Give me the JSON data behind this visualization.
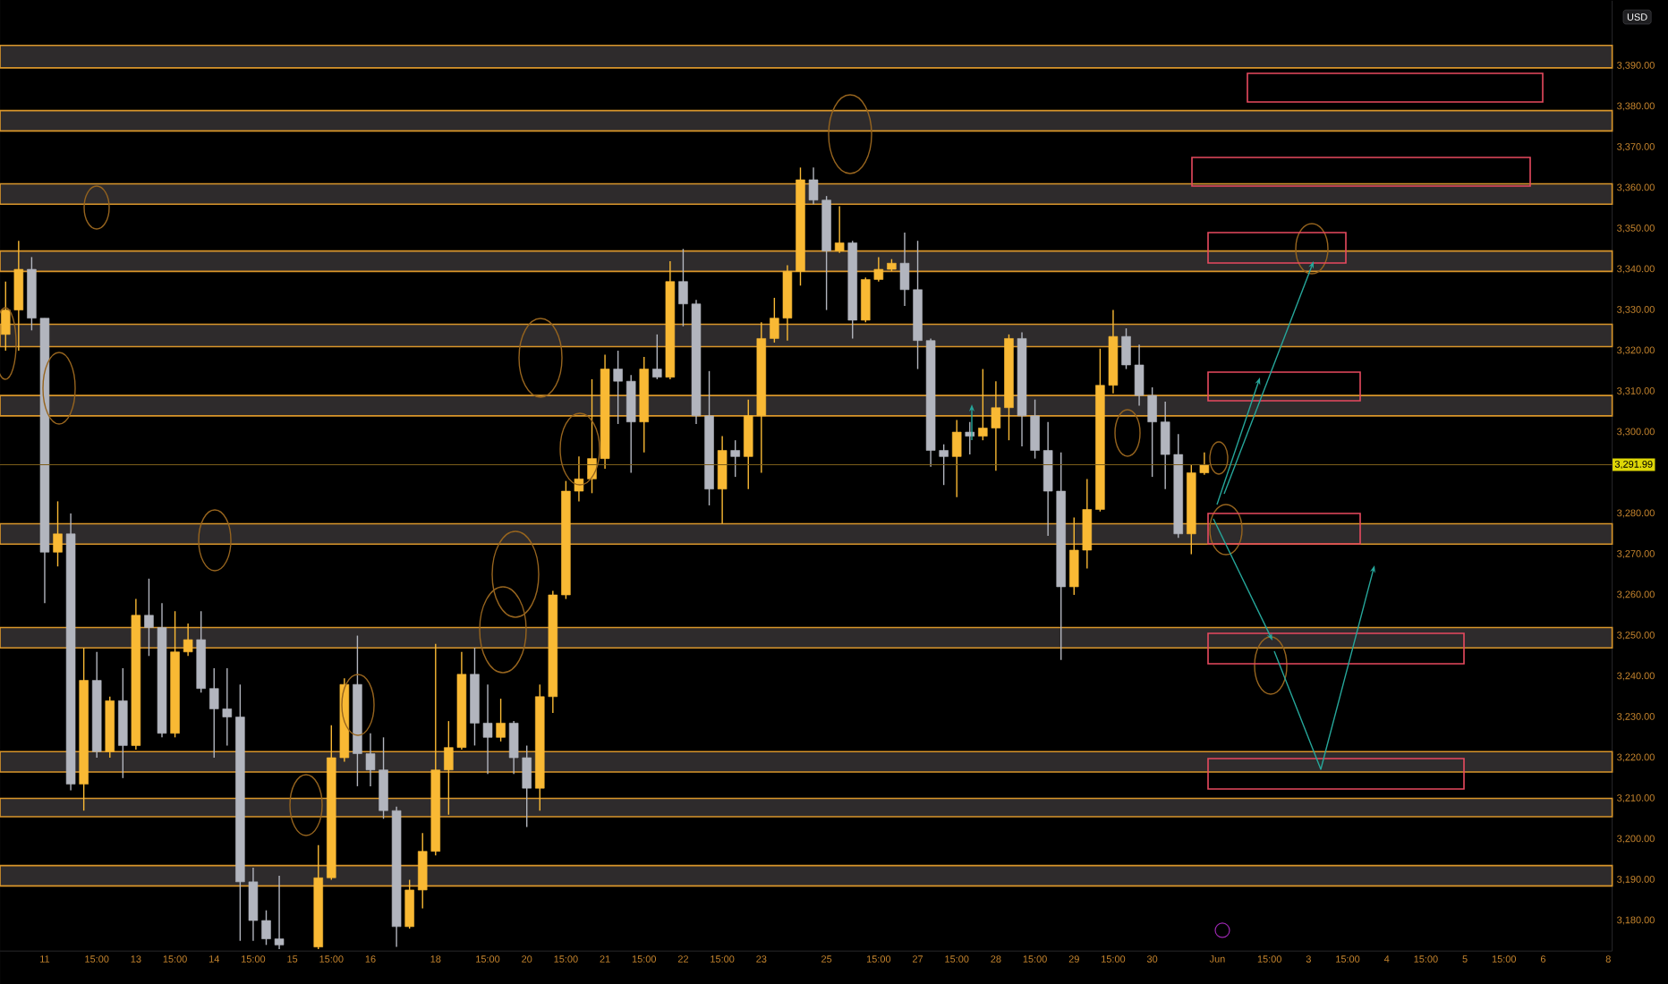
{
  "chart_data": {
    "type": "candlestick",
    "ylabel": "USD",
    "categories": [
      null,
      null,
      null,
      "11",
      null,
      null,
      null,
      "15:00",
      null,
      null,
      "13",
      null,
      null,
      "15:00",
      null,
      null,
      "14",
      null,
      null,
      "15:00",
      null,
      null,
      "15",
      null,
      null,
      "15:00",
      null,
      null,
      "16",
      null,
      null,
      null,
      null,
      "18",
      null,
      null,
      null,
      "15:00",
      null,
      null,
      "20",
      null,
      null,
      "15:00",
      null,
      null,
      "21",
      null,
      null,
      "15:00",
      null,
      null,
      "22",
      null,
      null,
      "15:00",
      null,
      null,
      "23",
      null,
      null,
      null,
      null,
      "25",
      null,
      null,
      null,
      "15:00",
      null,
      null,
      "27",
      null,
      null,
      "15:00",
      null,
      null,
      "28",
      null,
      null,
      "15:00",
      null,
      null,
      "29",
      null,
      null,
      "15:00",
      null,
      null,
      "30",
      null,
      null,
      null,
      null,
      "Jun",
      null,
      null,
      null,
      "15:00",
      null,
      null,
      "3",
      null,
      null,
      "15:00",
      null,
      null,
      "4",
      null,
      null,
      "15:00",
      null,
      null,
      "5",
      null,
      null,
      "15:00",
      null,
      null,
      "6",
      null,
      null,
      null,
      null,
      "8"
    ],
    "ohlc": [
      [
        3324,
        3337,
        3320,
        3330
      ],
      [
        3330,
        3347,
        3320,
        3340
      ],
      [
        3340,
        3343,
        3325,
        3328
      ],
      [
        3328,
        3328,
        3258,
        3270.5
      ],
      [
        3270.5,
        3283,
        3267,
        3275
      ],
      [
        3275,
        3280,
        3212,
        3213.5
      ],
      [
        3213.5,
        3247,
        3207,
        3239
      ],
      [
        3239,
        3246,
        3220,
        3221.5
      ],
      [
        3221.5,
        3235,
        3220,
        3234
      ],
      [
        3234,
        3242,
        3215,
        3223
      ],
      [
        3223,
        3259,
        3222,
        3255
      ],
      [
        3255,
        3264,
        3245,
        3252
      ],
      [
        3252,
        3258,
        3225,
        3226
      ],
      [
        3226,
        3256,
        3225,
        3246
      ],
      [
        3246,
        3253,
        3245,
        3249
      ],
      [
        3249,
        3256,
        3236,
        3237
      ],
      [
        3237,
        3242,
        3220,
        3232
      ],
      [
        3232,
        3242,
        3223,
        3230
      ],
      [
        3230,
        3238,
        3175,
        3189.5
      ],
      [
        3189.5,
        3193,
        3175,
        3180
      ],
      [
        3180,
        3182.5,
        3174,
        3175.5
      ],
      [
        3175.5,
        3191,
        3173,
        3174
      ],
      null,
      null,
      [
        3173.5,
        3198.5,
        3173,
        3190.5
      ],
      [
        3190.5,
        3228,
        3190,
        3220
      ],
      [
        3220,
        3239.5,
        3219,
        3238
      ],
      [
        3238,
        3250,
        3213,
        3221
      ],
      [
        3221,
        3226,
        3213,
        3217
      ],
      [
        3217,
        3225,
        3205,
        3207
      ],
      [
        3207,
        3208,
        3173.5,
        3178.5
      ],
      [
        3178.5,
        3190,
        3178,
        3187.5
      ],
      [
        3187.5,
        3201.5,
        3183,
        3197
      ],
      [
        3197,
        3248,
        3196,
        3217
      ],
      [
        3217,
        3229,
        3206,
        3222.5
      ],
      [
        3222.5,
        3246,
        3222,
        3240.5
      ],
      [
        3240.5,
        3247,
        3223,
        3228.5
      ],
      [
        3228.5,
        3238,
        3216,
        3225
      ],
      [
        3225,
        3234.5,
        3224,
        3228.5
      ],
      [
        3228.5,
        3229,
        3216,
        3220
      ],
      [
        3220,
        3223,
        3203,
        3212.5
      ],
      [
        3212.5,
        3238,
        3207,
        3235
      ],
      [
        3235,
        3261,
        3231,
        3260
      ],
      [
        3260,
        3288,
        3259,
        3285.5
      ],
      [
        3285.5,
        3294,
        3283,
        3288.5
      ],
      [
        3288.5,
        3313,
        3285,
        3293.5
      ],
      [
        3293.5,
        3319,
        3291,
        3315.5
      ],
      [
        3315.5,
        3320,
        3302,
        3312.5
      ],
      [
        3312.5,
        3314,
        3290,
        3302.5
      ],
      [
        3302.5,
        3318.5,
        3295,
        3315.5
      ],
      [
        3315.5,
        3324,
        3313,
        3313.5
      ],
      [
        3313.5,
        3342,
        3313,
        3337
      ],
      [
        3337,
        3345,
        3326,
        3331.5
      ],
      [
        3331.5,
        3332.5,
        3302,
        3304
      ],
      [
        3304,
        3315,
        3282,
        3286
      ],
      [
        3286,
        3299,
        3277.5,
        3295.5
      ],
      [
        3295.5,
        3298,
        3289,
        3294
      ],
      [
        3294,
        3308,
        3286,
        3304
      ],
      [
        3304,
        3327,
        3290,
        3323
      ],
      [
        3323,
        3333,
        3322,
        3328
      ],
      [
        3328,
        3341,
        3322.5,
        3339.5
      ],
      [
        3339.5,
        3365,
        3336,
        3362
      ],
      [
        3362,
        3365,
        3356,
        3357
      ],
      [
        3357,
        3358,
        3330,
        3344.5
      ],
      [
        3344.5,
        3355.5,
        3344,
        3346.5
      ],
      [
        3346.5,
        3347,
        3323,
        3327.5
      ],
      [
        3327.5,
        3338,
        3327,
        3337.5
      ],
      [
        3337.5,
        3343,
        3337,
        3340
      ],
      [
        3340,
        3342.5,
        3339.5,
        3341.5
      ],
      [
        3341.5,
        3349,
        3331,
        3335
      ],
      [
        3335,
        3347,
        3315.5,
        3322.5
      ],
      [
        3322.5,
        3323,
        3291.5,
        3295.5
      ],
      [
        3295.5,
        3297,
        3287,
        3294
      ],
      [
        3294,
        3303,
        3284,
        3300
      ],
      [
        3300,
        3302.5,
        3294.5,
        3299
      ],
      [
        3299,
        3315.5,
        3298,
        3301
      ],
      [
        3301,
        3312.5,
        3290.5,
        3306
      ],
      [
        3306,
        3324,
        3298,
        3323
      ],
      [
        3323,
        3324.5,
        3296.5,
        3304
      ],
      [
        3304,
        3308,
        3293.5,
        3295.5
      ],
      [
        3295.5,
        3302.5,
        3274.5,
        3285.5
      ],
      [
        3285.5,
        3295,
        3244,
        3262
      ],
      [
        3262,
        3279,
        3260,
        3271
      ],
      [
        3271,
        3288.5,
        3266.5,
        3281
      ],
      [
        3281,
        3320.5,
        3280.5,
        3311.5
      ],
      [
        3311.5,
        3330,
        3309.5,
        3323.5
      ],
      [
        3323.5,
        3325.5,
        3315.5,
        3316.5
      ],
      [
        3316.5,
        3321.5,
        3306.5,
        3309
      ],
      [
        3309,
        3311,
        3289,
        3302.5
      ],
      [
        3302.5,
        3307.5,
        3286,
        3294.5
      ],
      [
        3294.5,
        3299.5,
        3274,
        3275
      ],
      [
        3275,
        3292,
        3270,
        3290
      ],
      [
        3290,
        3295,
        3289.5,
        3291.99
      ],
      null,
      null,
      null,
      null,
      null,
      null,
      null,
      null,
      null,
      null,
      null,
      null,
      null,
      null,
      null,
      null,
      null,
      null,
      null,
      null,
      null,
      null,
      null,
      null,
      null,
      null,
      null,
      null,
      null,
      null,
      null
    ],
    "colors": [
      "#f9b934",
      "#f9b934",
      "#b2b5be",
      "#b2b5be",
      "#f9b934",
      "#b2b5be",
      "#f9b934",
      "#b2b5be",
      "#f9b934",
      "#b2b5be",
      "#f9b934",
      "#b2b5be",
      "#b2b5be",
      "#f9b934",
      "#f9b934",
      "#b2b5be",
      "#b2b5be",
      "#b2b5be",
      "#b2b5be",
      "#b2b5be",
      "#b2b5be",
      "#b2b5be",
      null,
      null,
      "#f9b934",
      "#f9b934",
      "#f9b934",
      "#b2b5be",
      "#b2b5be",
      "#b2b5be",
      "#b2b5be",
      "#f9b934",
      "#f9b934",
      "#f9b934",
      "#f9b934",
      "#f9b934",
      "#b2b5be",
      "#b2b5be",
      "#f9b934",
      "#b2b5be",
      "#b2b5be",
      "#f9b934",
      "#f9b934",
      "#f9b934",
      "#f9b934",
      "#f9b934",
      "#f9b934",
      "#b2b5be",
      "#b2b5be",
      "#f9b934",
      "#b2b5be",
      "#f9b934",
      "#b2b5be",
      "#b2b5be",
      "#b2b5be",
      "#f9b934",
      "#b2b5be",
      "#f9b934",
      "#f9b934",
      "#f9b934",
      "#f9b934",
      "#f9b934",
      "#b2b5be",
      "#b2b5be",
      "#f9b934",
      "#b2b5be",
      "#f9b934",
      "#f9b934",
      "#f9b934",
      "#b2b5be",
      "#b2b5be",
      "#b2b5be",
      "#b2b5be",
      "#f9b934",
      "#b2b5be",
      "#f9b934",
      "#f9b934",
      "#f9b934",
      "#b2b5be",
      "#b2b5be",
      "#b2b5be",
      "#b2b5be",
      "#f9b934",
      "#f9b934",
      "#f9b934",
      "#f9b934",
      "#b2b5be",
      "#b2b5be",
      "#b2b5be",
      "#b2b5be",
      "#b2b5be",
      "#f9b934",
      "#f9b934",
      null,
      null,
      null,
      null,
      null,
      null,
      null,
      null,
      null,
      null,
      null,
      null,
      null,
      null,
      null,
      null,
      null,
      null,
      null,
      null,
      null,
      null,
      null,
      null,
      null,
      null,
      null,
      null,
      null,
      null,
      null
    ],
    "ylim": [
      3172.5,
      3406
    ],
    "yticks": [
      {
        "value": 3180,
        "label": "3,180.00"
      },
      {
        "value": 3190,
        "label": "3,190.00"
      },
      {
        "value": 3200,
        "label": "3,200.00"
      },
      {
        "value": 3210,
        "label": "3,210.00"
      },
      {
        "value": 3220,
        "label": "3,220.00"
      },
      {
        "value": 3230,
        "label": "3,230.00"
      },
      {
        "value": 3240,
        "label": "3,240.00"
      },
      {
        "value": 3250,
        "label": "3,250.00"
      },
      {
        "value": 3260,
        "label": "3,260.00"
      },
      {
        "value": 3270,
        "label": "3,270.00"
      },
      {
        "value": 3280,
        "label": "3,280.00"
      },
      {
        "value": 3300,
        "label": "3,300.00"
      },
      {
        "value": 3310,
        "label": "3,310.00"
      },
      {
        "value": 3320,
        "label": "3,320.00"
      },
      {
        "value": 3330,
        "label": "3,330.00"
      },
      {
        "value": 3340,
        "label": "3,340.00"
      },
      {
        "value": 3350,
        "label": "3,350.00"
      },
      {
        "value": 3360,
        "label": "3,360.00"
      },
      {
        "value": 3370,
        "label": "3,370.00"
      },
      {
        "value": 3380,
        "label": "3,380.00"
      },
      {
        "value": 3390,
        "label": "3,390.00"
      }
    ],
    "bands": [
      {
        "axis": "y",
        "from": 3389.5,
        "to": 3395,
        "color": "#2e2b2c"
      },
      {
        "axis": "y",
        "from": 3374,
        "to": 3379,
        "color": "#2e2b2c"
      },
      {
        "axis": "y",
        "from": 3356,
        "to": 3361,
        "color": "#2e2b2c"
      },
      {
        "axis": "y",
        "from": 3339.5,
        "to": 3344.5,
        "color": "#2e2b2c"
      },
      {
        "axis": "y",
        "from": 3321,
        "to": 3326.5,
        "color": "#2e2b2c"
      },
      {
        "axis": "y",
        "from": 3304,
        "to": 3309,
        "color": "#2e2b2c"
      },
      {
        "axis": "y",
        "from": 3272.5,
        "to": 3277.5,
        "color": "#2e2b2c"
      },
      {
        "axis": "y",
        "from": 3247,
        "to": 3252,
        "color": "#2e2b2c"
      },
      {
        "axis": "y",
        "from": 3216.5,
        "to": 3221.5,
        "color": "#2e2b2c"
      },
      {
        "axis": "y",
        "from": 3205.5,
        "to": 3210,
        "color": "#2e2b2c"
      },
      {
        "axis": "y",
        "from": 3188.5,
        "to": 3193.5,
        "color": "#2e2b2c"
      }
    ],
    "ref_lines": [
      {
        "axis": "y",
        "value": 3291.99,
        "label": "3,291.99",
        "color": "#7c5d1a"
      }
    ]
  }
}
